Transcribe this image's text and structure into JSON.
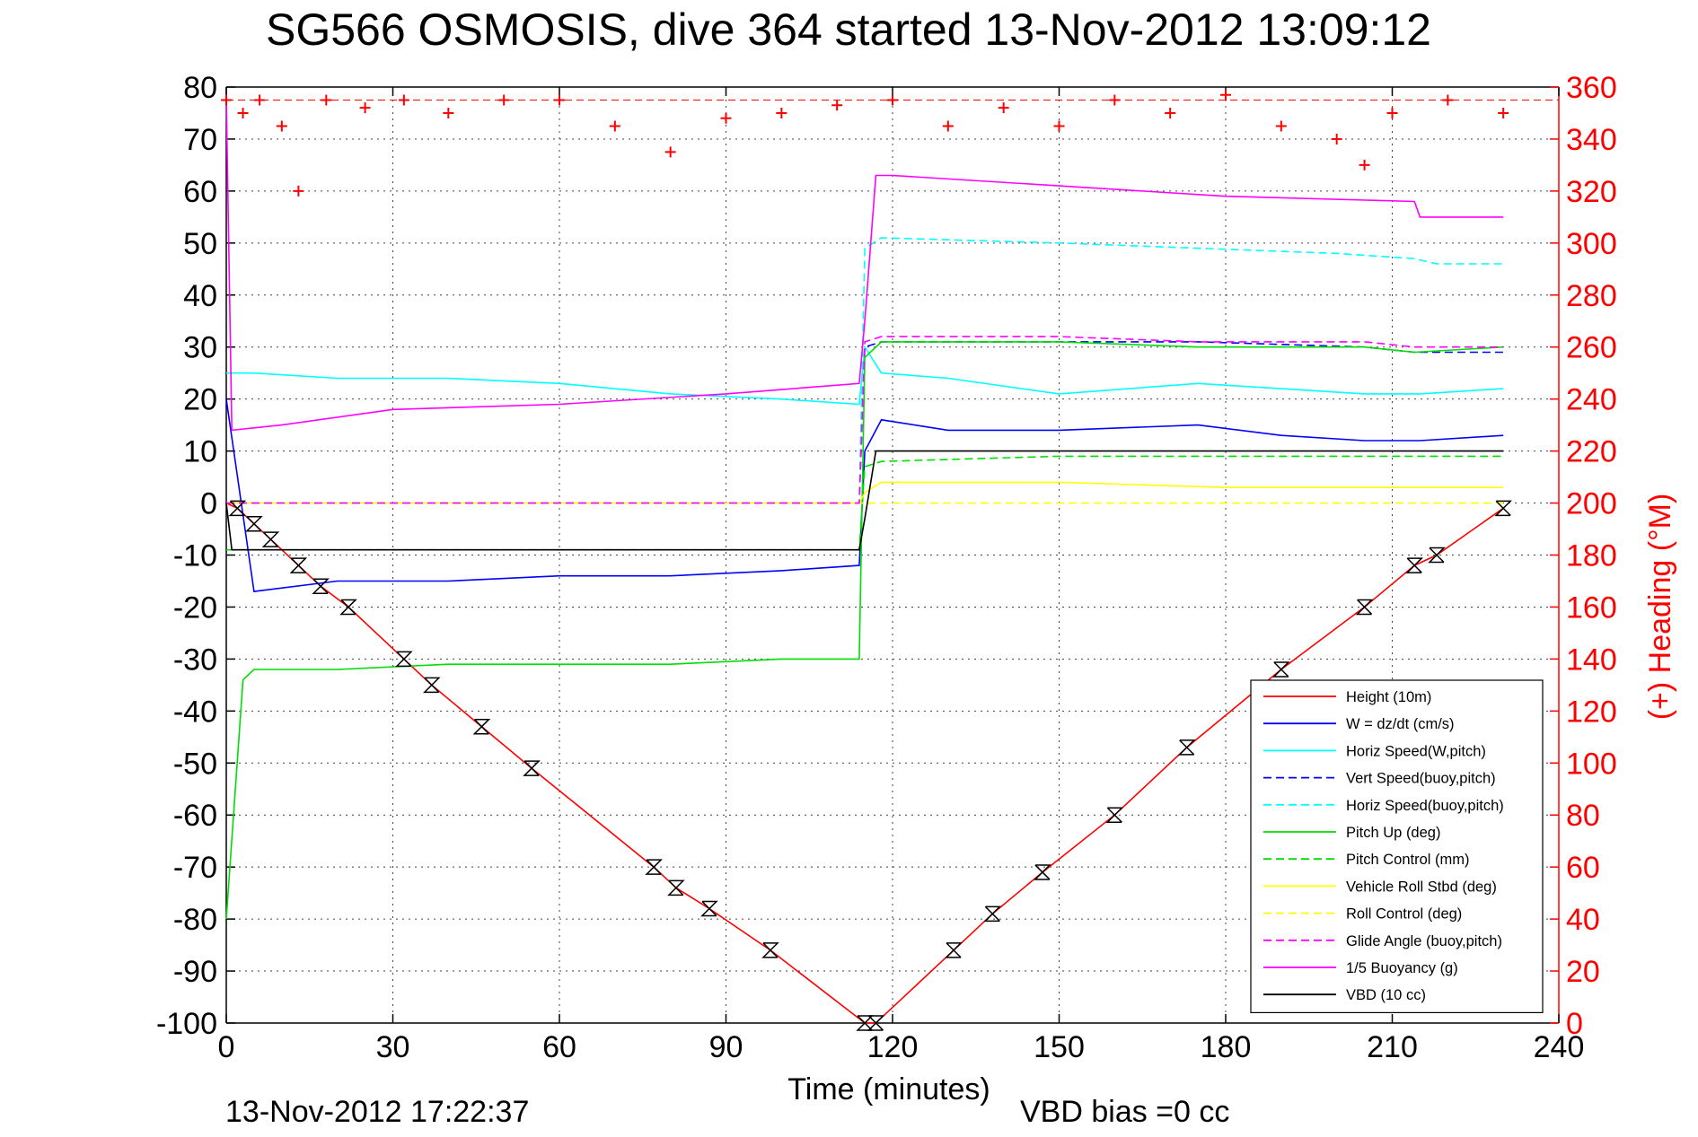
{
  "chart_data": {
    "type": "line",
    "title": "SG566 OSMOSIS, dive 364 started 13-Nov-2012 13:09:12",
    "xlabel": "Time (minutes)",
    "ylabel_right": "(+) Heading (°M)",
    "footer_left": "13-Nov-2012 17:22:37",
    "footer_right": "VBD bias =0 cc",
    "xlim": [
      0,
      240
    ],
    "ylim": [
      -100,
      80
    ],
    "ylim_right": [
      0,
      360
    ],
    "x_ticks": [
      0,
      30,
      60,
      90,
      120,
      150,
      180,
      210,
      240
    ],
    "y_ticks": [
      80,
      70,
      60,
      50,
      40,
      30,
      20,
      10,
      0,
      -10,
      -20,
      -30,
      -40,
      -50,
      -60,
      -70,
      -80,
      -90,
      -100
    ],
    "y_right_ticks": [
      360,
      340,
      320,
      300,
      280,
      260,
      240,
      220,
      200,
      180,
      160,
      140,
      120,
      100,
      80,
      60,
      40,
      20,
      0
    ],
    "grid": true,
    "legend_position": "bottom-right",
    "series": [
      {
        "name": "Height (10m)",
        "color": "#ff0000",
        "dash": "solid",
        "x": [
          0,
          2,
          5,
          8,
          13,
          17,
          22,
          32,
          37,
          46,
          55,
          77,
          81,
          87,
          98,
          115,
          117,
          131,
          138,
          147,
          160,
          173,
          190,
          205,
          214,
          218,
          230
        ],
        "y": [
          0,
          -1,
          -4,
          -7,
          -12,
          -16,
          -20,
          -30,
          -35,
          -43,
          -51,
          -70,
          -74,
          -78,
          -86,
          -100,
          -100,
          -86,
          -79,
          -71,
          -60,
          -47,
          -32,
          -20,
          -12,
          -10,
          -1
        ]
      },
      {
        "name": "W = dz/dt (cm/s)",
        "color": "#0000ff",
        "dash": "solid",
        "x": [
          0,
          5,
          20,
          40,
          60,
          80,
          100,
          114,
          115,
          118,
          130,
          150,
          175,
          190,
          205,
          215,
          230
        ],
        "y": [
          20,
          -17,
          -15,
          -15,
          -14,
          -14,
          -13,
          -12,
          10,
          16,
          14,
          14,
          15,
          13,
          12,
          12,
          13
        ]
      },
      {
        "name": "Horiz Speed(W,pitch)",
        "color": "#00ffff",
        "dash": "solid",
        "x": [
          0,
          5,
          20,
          40,
          60,
          80,
          100,
          114,
          115,
          118,
          130,
          150,
          175,
          190,
          205,
          215,
          230
        ],
        "y": [
          25,
          25,
          24,
          24,
          23,
          21,
          20,
          19,
          30,
          25,
          24,
          21,
          23,
          22,
          21,
          21,
          22
        ]
      },
      {
        "name": "Vert Speed(buoy,pitch)",
        "color": "#0000ff",
        "dash": "dashed",
        "x": [
          0,
          114,
          115,
          118,
          150,
          175,
          205,
          214,
          230
        ],
        "y": [
          0,
          0,
          30,
          31,
          31,
          31,
          30,
          29,
          29
        ]
      },
      {
        "name": "Horiz Speed(buoy,pitch)",
        "color": "#00ffff",
        "dash": "dashed",
        "x": [
          0,
          114,
          115,
          118,
          150,
          175,
          200,
          214,
          218,
          230
        ],
        "y": [
          0,
          0,
          49,
          51,
          50,
          49,
          48,
          47,
          46,
          46
        ]
      },
      {
        "name": "Pitch Up (deg)",
        "color": "#00dd00",
        "dash": "solid",
        "x": [
          0,
          3,
          5,
          20,
          40,
          60,
          80,
          100,
          114,
          115,
          118,
          150,
          175,
          205,
          214,
          230
        ],
        "y": [
          -80,
          -34,
          -32,
          -32,
          -31,
          -31,
          -31,
          -30,
          -30,
          28,
          31,
          31,
          30,
          30,
          29,
          30
        ]
      },
      {
        "name": "Pitch Control (mm)",
        "color": "#00dd00",
        "dash": "dashed",
        "x": [
          0,
          5,
          40,
          114,
          115,
          118,
          150,
          230
        ],
        "y": [
          -9,
          -9,
          -9,
          -9,
          7,
          8,
          9,
          9
        ]
      },
      {
        "name": "Vehicle Roll Stbd (deg)",
        "color": "#ffff00",
        "dash": "solid",
        "x": [
          0,
          5,
          40,
          114,
          115,
          118,
          150,
          180,
          205,
          230
        ],
        "y": [
          0,
          0,
          0,
          0,
          2,
          4,
          4,
          3,
          3,
          3
        ]
      },
      {
        "name": "Roll Control (deg)",
        "color": "#ffff00",
        "dash": "dashed",
        "x": [
          0,
          114,
          118,
          230
        ],
        "y": [
          0,
          0,
          0,
          0
        ]
      },
      {
        "name": "Glide Angle (buoy,pitch)",
        "color": "#ff00ff",
        "dash": "dashed",
        "x": [
          0,
          114,
          115,
          118,
          150,
          175,
          205,
          214,
          230
        ],
        "y": [
          0,
          0,
          31,
          32,
          32,
          31,
          31,
          30,
          30
        ]
      },
      {
        "name": "1/5 Buoyancy (g)",
        "color": "#ff00ff",
        "dash": "solid",
        "x": [
          0,
          1,
          10,
          30,
          60,
          90,
          114,
          115,
          117,
          120,
          150,
          180,
          214,
          215,
          230
        ],
        "y": [
          78,
          14,
          15,
          18,
          19,
          21,
          23,
          35,
          63,
          63,
          61,
          59,
          58,
          55,
          55
        ]
      },
      {
        "name": "VBD (10 cc)",
        "color": "#000000",
        "dash": "solid",
        "x": [
          0,
          1,
          5,
          114,
          115,
          117,
          118,
          230
        ],
        "y": [
          0,
          -9,
          -9,
          -9,
          -3,
          10,
          10,
          10
        ]
      }
    ],
    "heading_series": {
      "name": "Heading (°M)",
      "marker": "+",
      "color": "#ff0000",
      "axis": "right",
      "x": [
        0,
        3,
        6,
        10,
        13,
        18,
        25,
        32,
        40,
        50,
        60,
        70,
        80,
        90,
        100,
        110,
        120,
        130,
        140,
        150,
        160,
        170,
        180,
        190,
        200,
        205,
        210,
        220,
        230
      ],
      "y": [
        355,
        350,
        355,
        345,
        320,
        355,
        352,
        355,
        350,
        355,
        355,
        345,
        335,
        348,
        350,
        353,
        355,
        345,
        352,
        345,
        355,
        350,
        357,
        345,
        340,
        330,
        350,
        355,
        350
      ]
    },
    "heading_reference": {
      "value": 355,
      "axis": "right"
    },
    "apogee_marks": {
      "x": [
        2,
        5,
        8,
        13,
        17,
        22,
        32,
        37,
        46,
        55,
        77,
        81,
        87,
        98,
        115,
        117,
        131,
        138,
        147,
        160,
        173,
        190,
        205,
        214,
        218,
        230
      ]
    }
  }
}
